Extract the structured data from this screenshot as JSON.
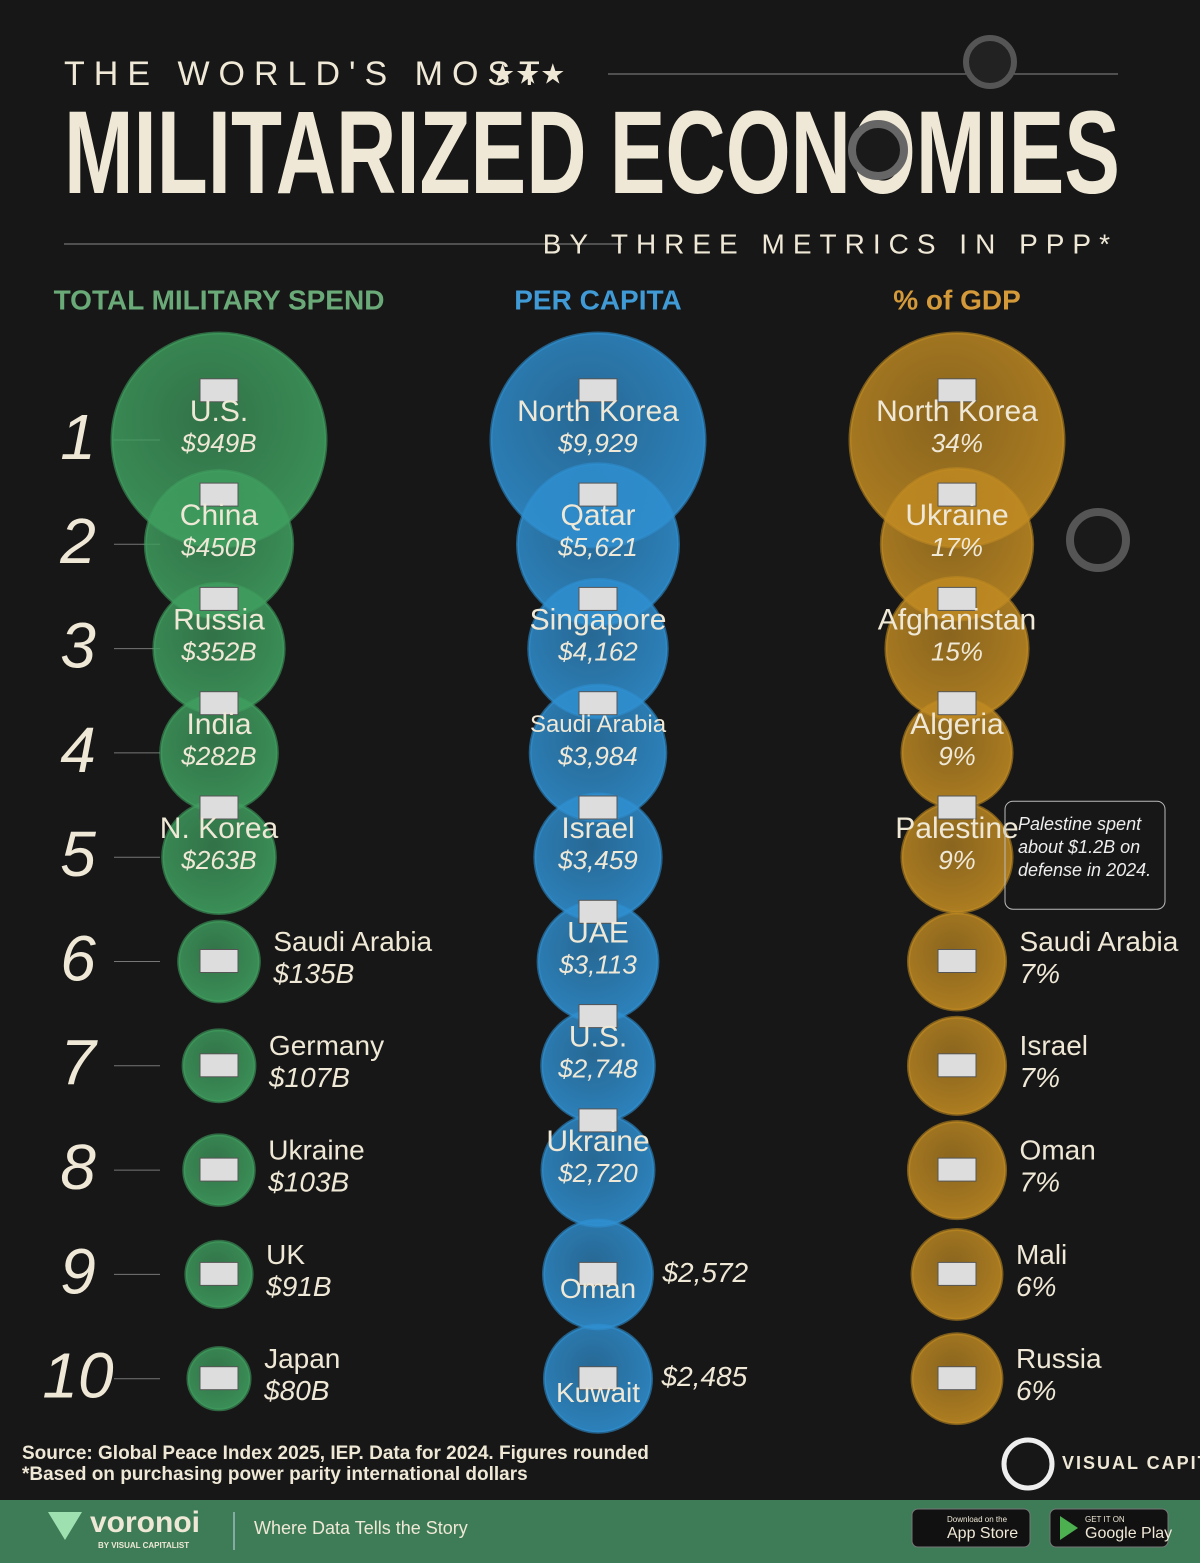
{
  "header": {
    "kicker": "THE WORLD'S MOST",
    "stars": "★★★",
    "title": "MILITARIZED ECONOMIES",
    "subtitle": "BY THREE METRICS IN PPP*"
  },
  "ranks": [
    1,
    2,
    3,
    4,
    5,
    6,
    7,
    8,
    9,
    10
  ],
  "chart_data": [
    {
      "type": "bubble",
      "title": "TOTAL MILITARY SPEND",
      "color": "#3f9e5f",
      "categories": [
        "U.S.",
        "China",
        "Russia",
        "India",
        "N. Korea",
        "Saudi Arabia",
        "Germany",
        "Ukraine",
        "UK",
        "Japan"
      ],
      "values": [
        949,
        450,
        352,
        282,
        263,
        135,
        107,
        103,
        91,
        80
      ],
      "value_labels": [
        "$949B",
        "$450B",
        "$352B",
        "$282B",
        "$263B",
        "$135B",
        "$107B",
        "$103B",
        "$91B",
        "$80B"
      ]
    },
    {
      "type": "bubble",
      "title": "PER CAPITA",
      "color": "#2f8fd0",
      "categories": [
        "North Korea",
        "Qatar",
        "Singapore",
        "Saudi Arabia",
        "Israel",
        "UAE",
        "U.S.",
        "Ukraine",
        "Oman",
        "Kuwait"
      ],
      "values": [
        9929,
        5621,
        4162,
        3984,
        3459,
        3113,
        2748,
        2720,
        2572,
        2485
      ],
      "value_labels": [
        "$9,929",
        "$5,621",
        "$4,162",
        "$3,984",
        "$3,459",
        "$3,113",
        "$2,748",
        "$2,720",
        "$2,572",
        "$2,485"
      ]
    },
    {
      "type": "bubble",
      "title": "% of GDP",
      "color": "#c08a22",
      "categories": [
        "North Korea",
        "Ukraine",
        "Afghanistan",
        "Algeria",
        "Palestine",
        "Saudi Arabia",
        "Israel",
        "Oman",
        "Mali",
        "Russia"
      ],
      "values": [
        34,
        17,
        15,
        9,
        9,
        7,
        7,
        7,
        6,
        6
      ],
      "value_labels": [
        "34%",
        "17%",
        "15%",
        "9%",
        "9%",
        "7%",
        "7%",
        "7%",
        "6%",
        "6%"
      ],
      "annotation": "Palestine spent about $1.2B on defense in 2024."
    }
  ],
  "footer": {
    "source": "Source: Global Peace Index 2025, IEP. Data for 2024. Figures rounded",
    "note": "*Based on purchasing power parity international dollars",
    "brand": "VISUAL CAPITALIST",
    "voronoi": "voronoi",
    "voronoi_sub": "BY VISUAL CAPITALIST",
    "tagline": "Where Data Tells the Story",
    "appstore_small": "Download on the",
    "appstore": "App Store",
    "google_small": "GET IT ON",
    "google": "Google Play"
  }
}
